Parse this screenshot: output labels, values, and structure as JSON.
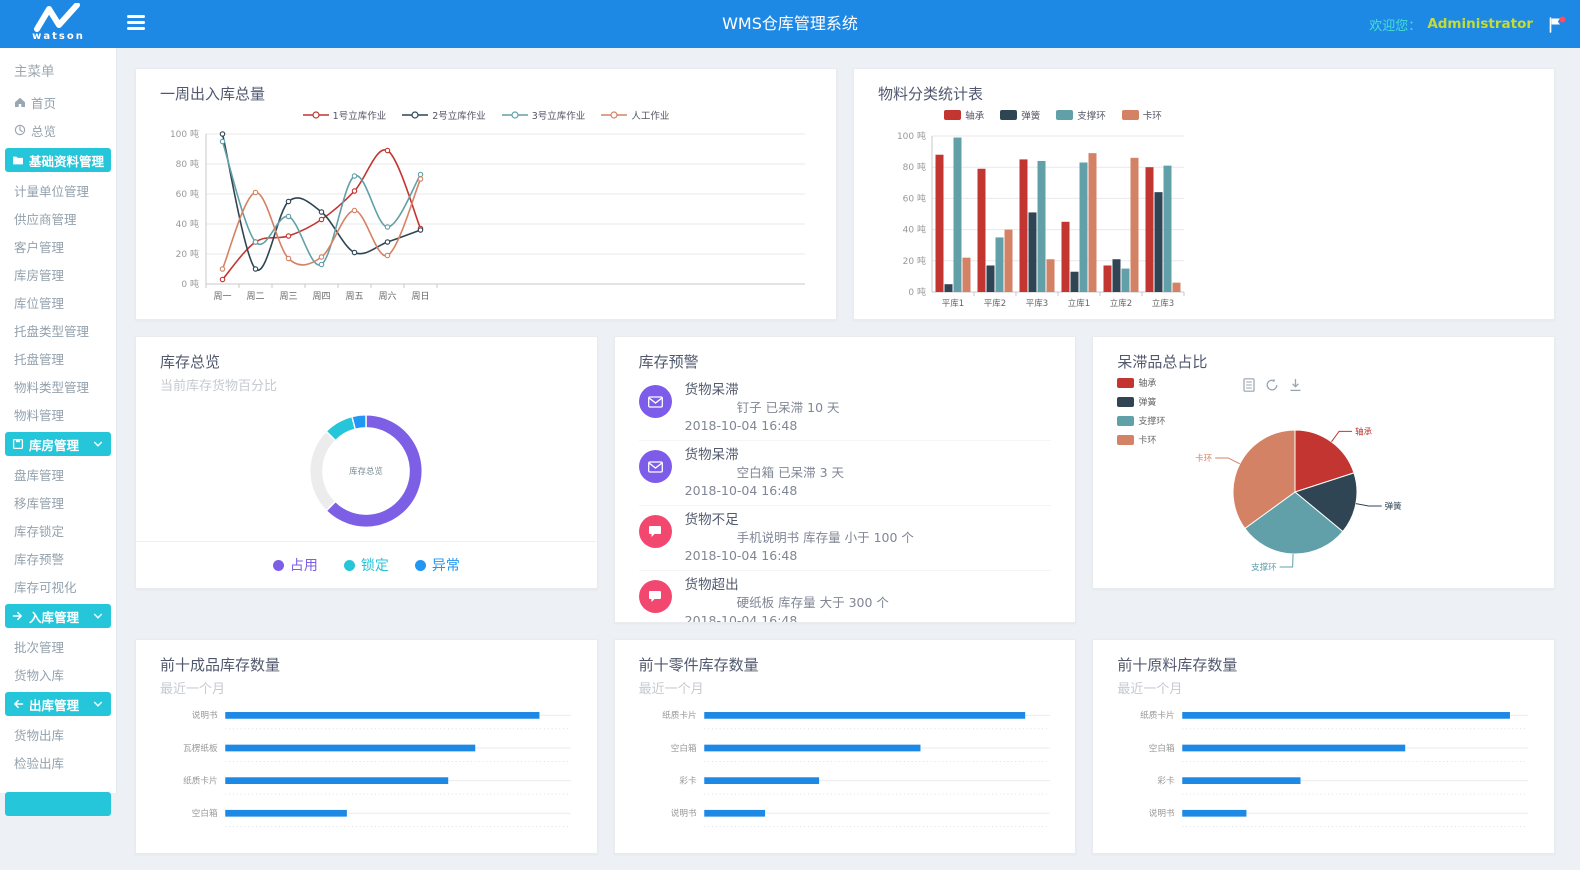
{
  "header": {
    "logo_text": "watson",
    "title": "WMS仓库管理系统",
    "welcome_label": "欢迎您：",
    "username": "Administrator"
  },
  "colors": {
    "header_blue": "#1E88E5",
    "accent_teal": "#26C6DA",
    "bar_blue": "#1E88E5"
  },
  "sidebar": {
    "section_label": "主菜单",
    "items": [
      {
        "label": "首页",
        "icon": "home"
      },
      {
        "label": "总览",
        "icon": "overview"
      },
      {
        "label": "基础资料管理",
        "icon": "folder",
        "active": true
      },
      {
        "label": "计量单位管理"
      },
      {
        "label": "供应商管理"
      },
      {
        "label": "客户管理"
      },
      {
        "label": "库房管理"
      },
      {
        "label": "库位管理"
      },
      {
        "label": "托盘类型管理"
      },
      {
        "label": "托盘管理"
      },
      {
        "label": "物料类型管理"
      },
      {
        "label": "物料管理"
      },
      {
        "label": "库房管理",
        "icon": "box",
        "group": true,
        "chevron": true
      },
      {
        "label": "盘库管理"
      },
      {
        "label": "移库管理"
      },
      {
        "label": "库存锁定"
      },
      {
        "label": "库存预警"
      },
      {
        "label": "库存可视化"
      },
      {
        "label": "入库管理",
        "icon": "arrow-right",
        "group": true,
        "chevron": true
      },
      {
        "label": "批次管理"
      },
      {
        "label": "货物入库"
      },
      {
        "label": "出库管理",
        "icon": "arrow-left",
        "group": true,
        "chevron": true
      },
      {
        "label": "货物出库"
      },
      {
        "label": "检验出库"
      },
      {
        "label": "",
        "group": true,
        "partial": true
      }
    ]
  },
  "alerts": {
    "title": "库存预警",
    "items": [
      {
        "icon": "envelope",
        "icon_color": "#7c5ce8",
        "title": "货物呆滞",
        "detail": "钉子 已呆滞 10 天",
        "time": "2018-10-04 16:48"
      },
      {
        "icon": "envelope",
        "icon_color": "#7c5ce8",
        "title": "货物呆滞",
        "detail": "空白箱 已呆滞 3 天",
        "time": "2018-10-04 16:48"
      },
      {
        "icon": "chat",
        "icon_color": "#f2486f",
        "title": "货物不足",
        "detail": "手机说明书 库存量 小于 100 个",
        "time": "2018-10-04 16:48"
      },
      {
        "icon": "chat",
        "icon_color": "#f2486f",
        "title": "货物超出",
        "detail": "硬纸板 库存量 大于 300 个",
        "time": "2018-10-04 16:48"
      }
    ]
  },
  "toolbox_icons": [
    "data-view-icon",
    "refresh-icon",
    "download-icon"
  ],
  "chart_data": [
    {
      "id": "weekly_in_out",
      "type": "line",
      "title": "一周出入库总量",
      "x": [
        "周一",
        "周二",
        "周三",
        "周四",
        "周五",
        "周六",
        "周日"
      ],
      "unit": "吨",
      "ylim": [
        0,
        100
      ],
      "ytick_step": 20,
      "grid": true,
      "legend_position": "top",
      "series": [
        {
          "name": "1号立库作业",
          "color": "#c23531",
          "values": [
            3,
            28,
            32,
            43,
            62,
            89,
            37
          ]
        },
        {
          "name": "2号立库作业",
          "color": "#2f4554",
          "values": [
            100,
            10,
            55,
            48,
            21,
            28,
            36
          ]
        },
        {
          "name": "3号立库作业",
          "color": "#61a0a8",
          "values": [
            95,
            28,
            45,
            13,
            72,
            38,
            73
          ]
        },
        {
          "name": "人工作业",
          "color": "#d48265",
          "values": [
            10,
            61,
            17,
            18,
            49,
            19,
            70
          ]
        }
      ]
    },
    {
      "id": "material_category_stats",
      "type": "bar",
      "title": "物料分类统计表",
      "categories": [
        "平库1",
        "平库2",
        "平库3",
        "立库1",
        "立库2",
        "立库3"
      ],
      "unit": "吨",
      "ylim": [
        0,
        100
      ],
      "ytick_step": 20,
      "grid": true,
      "legend_position": "top",
      "series": [
        {
          "name": "轴承",
          "color": "#c23531",
          "values": [
            88,
            79,
            85,
            45,
            17,
            80
          ]
        },
        {
          "name": "弹簧",
          "color": "#2f4554",
          "values": [
            5,
            17,
            51,
            13,
            21,
            64
          ]
        },
        {
          "name": "支撑环",
          "color": "#61a0a8",
          "values": [
            99,
            35,
            84,
            83,
            15,
            81
          ]
        },
        {
          "name": "卡环",
          "color": "#d48265",
          "values": [
            22,
            40,
            21,
            89,
            86,
            6
          ]
        }
      ]
    },
    {
      "id": "inventory_overview",
      "type": "donut",
      "title": "库存总览",
      "subtitle": "当前库存货物百分比",
      "center_label": "库存总览",
      "legend_position": "bottom",
      "segments": [
        {
          "name": "占用",
          "value": 62.5,
          "color": "#7d5fe6",
          "in_legend": true
        },
        {
          "name": "",
          "value": 25,
          "color": "#ececec",
          "in_legend": false
        },
        {
          "name": "锁定",
          "value": 8.5,
          "color": "#26c6da",
          "in_legend": true
        },
        {
          "name": "异常",
          "value": 4,
          "color": "#2196f3",
          "in_legend": true
        }
      ]
    },
    {
      "id": "stagnant_goods_share",
      "type": "pie",
      "title": "呆滞品总占比",
      "legend_position": "top-left",
      "slices": [
        {
          "name": "轴承",
          "value": 20,
          "color": "#c23531"
        },
        {
          "name": "弹簧",
          "value": 16,
          "color": "#2f4554"
        },
        {
          "name": "支撑环",
          "value": 29,
          "color": "#61a0a8"
        },
        {
          "name": "卡环",
          "value": 35,
          "color": "#d48265"
        }
      ]
    },
    {
      "id": "top10_finished_goods",
      "type": "hbar",
      "title": "前十成品库存数量",
      "subtitle": "最近一个月",
      "color": "#1E88E5",
      "categories": [
        "说明书",
        "瓦楞纸板",
        "纸质卡片",
        "空白箱"
      ],
      "values": [
        93,
        74,
        66,
        36
      ],
      "xlim": [
        0,
        100
      ]
    },
    {
      "id": "top10_parts",
      "type": "hbar",
      "title": "前十零件库存数量",
      "subtitle": "最近一个月",
      "color": "#1E88E5",
      "categories": [
        "纸质卡片",
        "空白箱",
        "彩卡",
        "说明书"
      ],
      "values": [
        95,
        64,
        34,
        18
      ],
      "xlim": [
        0,
        100
      ]
    },
    {
      "id": "top10_raw_materials",
      "type": "hbar",
      "title": "前十原料库存数量",
      "subtitle": "最近一个月",
      "color": "#1E88E5",
      "categories": [
        "纸质卡片",
        "空白箱",
        "彩卡",
        "说明书"
      ],
      "values": [
        97,
        66,
        35,
        19
      ],
      "xlim": [
        0,
        100
      ]
    }
  ]
}
